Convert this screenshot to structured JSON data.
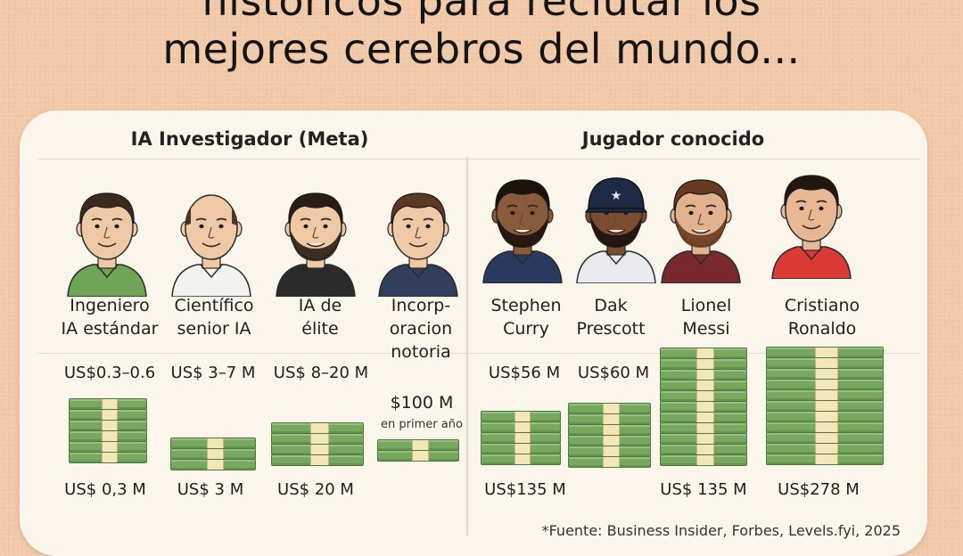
{
  "headline": {
    "line1": "históricos para reclutar los",
    "line2": "mejores cerebros del mundo..."
  },
  "left_section": {
    "title": "IA Investigador (Meta)",
    "people": [
      {
        "label_lines": [
          "Ingeniero",
          "IA estándar"
        ],
        "top_amount": "US$0.3–0.6",
        "bottom_amount": "US$ 0,3 M",
        "shirt_color": "#6fa556",
        "hair_color": "#3a2a1e",
        "bald": false,
        "beard": false,
        "cap": false
      },
      {
        "label_lines": [
          "Científico",
          "senior IA"
        ],
        "top_amount": "US$ 3–7 M",
        "bottom_amount": "US$ 3 M",
        "shirt_color": "#f2f2ee",
        "hair_color": "#4a3626",
        "bald": true,
        "beard": false,
        "cap": false
      },
      {
        "label_lines": [
          "IA de",
          "élite"
        ],
        "top_amount": "US$ 8–20 M",
        "bottom_amount": "US$ 20 M",
        "shirt_color": "#2b2b2b",
        "hair_color": "#2a1d14",
        "bald": false,
        "beard": true,
        "cap": false
      },
      {
        "label_lines": [
          "Incorp-",
          "oracion",
          "notoria"
        ],
        "top_amount": "$100 M",
        "sub_note": "en primer año",
        "shirt_color": "#2f3f5c",
        "hair_color": "#5a3a22",
        "bald": false,
        "beard": false,
        "cap": false
      }
    ]
  },
  "right_section": {
    "title": "Jugador conocido",
    "people": [
      {
        "label_lines": [
          "Stephen",
          "Curry"
        ],
        "top_amount": "US$56 M",
        "bottom_amount": "US$135 M",
        "shirt_color": "#2a3a5e",
        "skin": "#8a5a3c",
        "hair_color": "#1c120c",
        "beard": true,
        "cap": false
      },
      {
        "label_lines": [
          "Dak",
          "Prescott"
        ],
        "top_amount": "US$60 M",
        "shirt_color": "#e9eaee",
        "skin": "#7a4c30",
        "hair_color": "#1c120c",
        "beard": true,
        "cap": true,
        "cap_color": "#1e2b47"
      },
      {
        "label_lines": [
          "Lionel",
          "Messi"
        ],
        "bottom_amount": "US$ 135 M",
        "shirt_color": "#7a2a2c",
        "skin": "#e2b28e",
        "hair_color": "#6a3a20",
        "beard": true,
        "cap": false
      },
      {
        "label_lines": [
          "Cristiano",
          "Ronaldo"
        ],
        "bottom_amount": "US$278 M",
        "shirt_color": "#d93a34",
        "skin": "#e8b894",
        "hair_color": "#22170f",
        "beard": false,
        "cap": false
      }
    ]
  },
  "source": "*Fuente: Business Insider, Forbes, Levels.fyi, 2025",
  "colors": {
    "background": "#f1c9a9",
    "panel": "#fbf6ec",
    "money_green": "#76a95e",
    "money_band": "#f3e6b8"
  }
}
